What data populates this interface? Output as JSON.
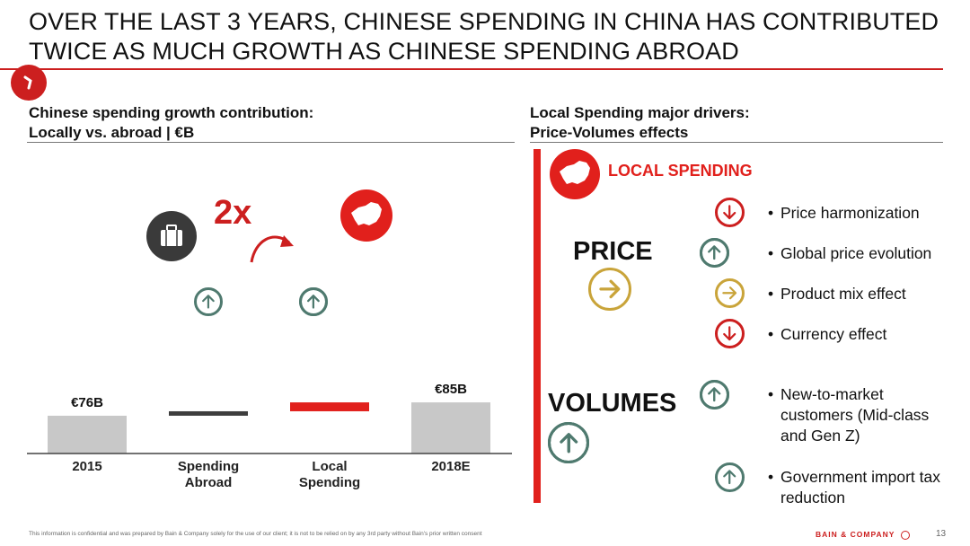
{
  "title": {
    "line1": "OVER THE LAST 3 YEARS, CHINESE SPENDING IN CHINA HAS CONTRIBUTED",
    "line2": "TWICE AS MUCH GROWTH AS CHINESE SPENDING ABROAD"
  },
  "left": {
    "subtitle_line1": "Chinese spending growth contribution:",
    "subtitle_line2": "Locally vs. abroad | €B",
    "multiplier": "2x",
    "colors": {
      "bar": "#c8c8c8",
      "abroad": "#3d3d3d",
      "local": "#e1201c",
      "accent": "#cc1f1f"
    }
  },
  "chart_data": {
    "type": "bar",
    "subtype": "waterfall",
    "categories": [
      "2015",
      "Spending Abroad",
      "Local Spending",
      "2018E"
    ],
    "category_lines": [
      [
        "2015"
      ],
      [
        "Spending",
        "Abroad"
      ],
      [
        "Local",
        "Spending"
      ],
      [
        "2018E"
      ]
    ],
    "values": [
      76,
      3,
      6,
      85
    ],
    "value_labels": [
      "€76B",
      "",
      "",
      "€85B"
    ],
    "ylim": [
      0,
      90
    ],
    "grid": false,
    "legend": "none"
  },
  "right": {
    "subtitle_line1": "Local Spending major drivers:",
    "subtitle_line2": "Price-Volumes effects",
    "local_spending_label": "LOCAL SPENDING",
    "price_label": "PRICE",
    "volumes_label": "VOLUMES",
    "drivers": [
      {
        "text": [
          "Price harmonization"
        ],
        "arrows": [
          "down"
        ],
        "color": "#cc1f1f"
      },
      {
        "text": [
          "Global price evolution"
        ],
        "arrows": [
          "up",
          "up"
        ],
        "color": "#4f7a6f"
      },
      {
        "text": [
          "Product mix effect"
        ],
        "arrows": [
          "right"
        ],
        "color": "#c9a43a"
      },
      {
        "text": [
          "Currency effect"
        ],
        "arrows": [
          "down"
        ],
        "color": "#cc1f1f"
      },
      {
        "text": [
          "New-to-market",
          "customers (Mid-class",
          "and Gen Z)"
        ],
        "arrows": [
          "up",
          "up"
        ],
        "color": "#4f7a6f"
      },
      {
        "text": [
          "Government import tax",
          "reduction"
        ],
        "arrows": [
          "up"
        ],
        "color": "#4f7a6f"
      }
    ]
  },
  "footer": {
    "disclaimer": "This information is confidential and was prepared by Bain & Company solely for the use of our client; it is not to be relied on by any 3rd party without Bain's prior written consent",
    "brand": "BAIN & COMPANY",
    "page": "13"
  }
}
